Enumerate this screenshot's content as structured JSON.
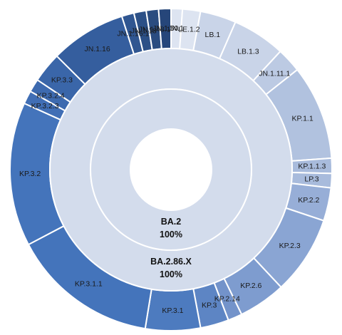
{
  "chart_data": {
    "type": "sunburst",
    "title": "",
    "center_hole": true,
    "rings": [
      {
        "name": "BA.2",
        "value_label": "100%",
        "color": "#d3dcec"
      },
      {
        "name": "BA.2.86.X",
        "value_label": "100%",
        "color": "#d3dcec"
      }
    ],
    "outer_segments": [
      {
        "name": "JN.1",
        "value": 1.2,
        "color": "#dde4f1"
      },
      {
        "name": "LE.1.2",
        "value": 1.9,
        "color": "#dde4f1"
      },
      {
        "name": "LB.1",
        "value": 3.8,
        "color": "#c9d4e8"
      },
      {
        "name": "LB.1.3",
        "value": 5.6,
        "color": "#c9d4e8"
      },
      {
        "name": "JN.1.11.1",
        "value": 2.6,
        "color": "#bccae3"
      },
      {
        "name": "KP.1.1",
        "value": 10.0,
        "color": "#b1c2df"
      },
      {
        "name": "KP.1.1.3",
        "value": 1.6,
        "color": "#a8bbdc"
      },
      {
        "name": "LP.3",
        "value": 1.5,
        "color": "#a8bbdc"
      },
      {
        "name": "KP.2.2",
        "value": 3.5,
        "color": "#97aed7"
      },
      {
        "name": "KP.2.3",
        "value": 8.3,
        "color": "#8aa5d3"
      },
      {
        "name": "KP.2.6",
        "value": 5.0,
        "color": "#7e9ccf"
      },
      {
        "name": "KP.2.14",
        "value": 1.5,
        "color": "#7393ca"
      },
      {
        "name": "KP.3",
        "value": 3.0,
        "color": "#5d85c4"
      },
      {
        "name": "KP.3.1",
        "value": 5.8,
        "color": "#4d7bbf"
      },
      {
        "name": "KP.3.1.1",
        "value": 15.5,
        "color": "#4474bb"
      },
      {
        "name": "KP.3.2",
        "value": 15.2,
        "color": "#4474bb"
      },
      {
        "name": "KP.3.2.3",
        "value": 1.4,
        "color": "#406eb5"
      },
      {
        "name": "KP.3.2.4",
        "value": 1.4,
        "color": "#3d6aaf"
      },
      {
        "name": "KP.3.3",
        "value": 3.2,
        "color": "#3a66a9"
      },
      {
        "name": "JN.1.16",
        "value": 8.0,
        "color": "#355e9e"
      },
      {
        "name": "JN.1.16.1",
        "value": 1.3,
        "color": "#305691"
      },
      {
        "name": "JN.1.18",
        "value": 1.3,
        "color": "#2c5087"
      },
      {
        "name": "JN.1.48.1",
        "value": 1.3,
        "color": "#2a4c80"
      },
      {
        "name": "JN.1.50",
        "value": 1.3,
        "color": "#26467a"
      }
    ]
  }
}
